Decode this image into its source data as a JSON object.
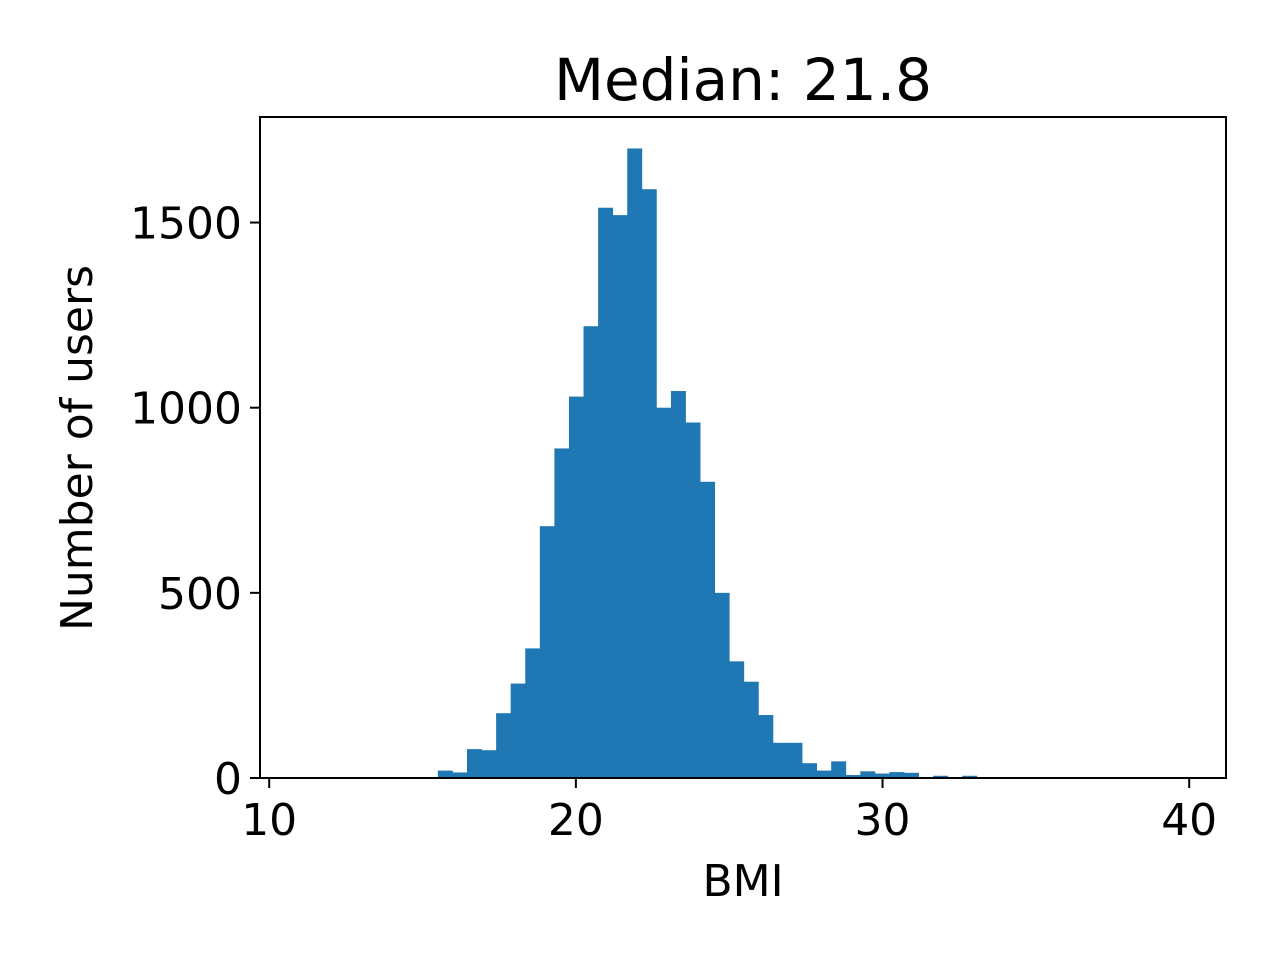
{
  "chart_data": {
    "type": "bar",
    "title": "Median: 21.8",
    "xlabel": "BMI",
    "ylabel": "Number of users",
    "xlim": [
      9.7,
      41.2
    ],
    "ylim": [
      0,
      1785
    ],
    "x_ticks": [
      10,
      20,
      30,
      40
    ],
    "y_ticks": [
      0,
      500,
      1000,
      1500
    ],
    "bin_width": 0.475,
    "bar_color": "#1f77b4",
    "grid": false,
    "legend": "none",
    "bins": [
      {
        "x": 15.5,
        "value": 20
      },
      {
        "x": 15.975,
        "value": 15
      },
      {
        "x": 16.45,
        "value": 78
      },
      {
        "x": 16.925,
        "value": 75
      },
      {
        "x": 17.4,
        "value": 175
      },
      {
        "x": 17.875,
        "value": 255
      },
      {
        "x": 18.35,
        "value": 350
      },
      {
        "x": 18.825,
        "value": 680
      },
      {
        "x": 19.3,
        "value": 890
      },
      {
        "x": 19.775,
        "value": 1030
      },
      {
        "x": 20.25,
        "value": 1220
      },
      {
        "x": 20.725,
        "value": 1540
      },
      {
        "x": 21.2,
        "value": 1520
      },
      {
        "x": 21.675,
        "value": 1700
      },
      {
        "x": 22.15,
        "value": 1590
      },
      {
        "x": 22.625,
        "value": 1000
      },
      {
        "x": 23.1,
        "value": 1045
      },
      {
        "x": 23.575,
        "value": 960
      },
      {
        "x": 24.05,
        "value": 800
      },
      {
        "x": 24.525,
        "value": 500
      },
      {
        "x": 25.0,
        "value": 315
      },
      {
        "x": 25.475,
        "value": 260
      },
      {
        "x": 25.95,
        "value": 170
      },
      {
        "x": 26.425,
        "value": 95
      },
      {
        "x": 26.9,
        "value": 95
      },
      {
        "x": 27.375,
        "value": 40
      },
      {
        "x": 27.85,
        "value": 20
      },
      {
        "x": 28.325,
        "value": 45
      },
      {
        "x": 28.8,
        "value": 8
      },
      {
        "x": 29.275,
        "value": 18
      },
      {
        "x": 29.75,
        "value": 12
      },
      {
        "x": 30.225,
        "value": 16
      },
      {
        "x": 30.7,
        "value": 14
      },
      {
        "x": 31.175,
        "value": 2
      },
      {
        "x": 31.65,
        "value": 6
      },
      {
        "x": 32.125,
        "value": 2
      },
      {
        "x": 32.6,
        "value": 6
      },
      {
        "x": 33.075,
        "value": 1
      }
    ]
  }
}
